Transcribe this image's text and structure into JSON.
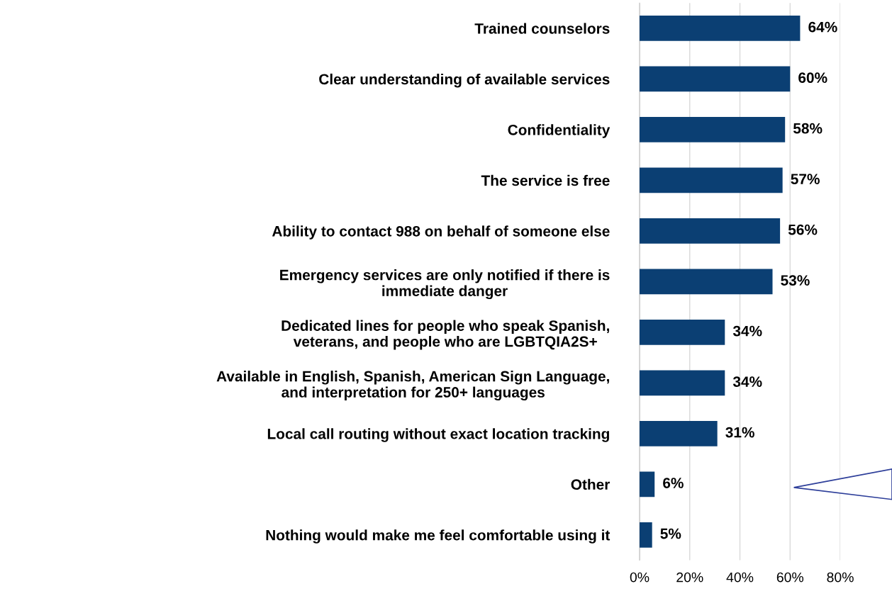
{
  "chart_data": {
    "type": "bar",
    "orientation": "horizontal",
    "categories": [
      "Trained counselors",
      "Clear understanding of available services",
      "Confidentiality",
      "The service is free",
      "Ability to contact 988 on behalf of someone else",
      "Emergency services are only notified if there is\nimmediate danger",
      "Dedicated lines for people who speak Spanish,\nveterans, and people who are LGBTQIA2S+",
      "Available in English, Spanish, American Sign Language,\nand interpretation for 250+ languages",
      "Local call routing without exact location tracking",
      "Other",
      "Nothing would make me feel comfortable using it"
    ],
    "values": [
      64,
      60,
      58,
      57,
      56,
      53,
      34,
      34,
      31,
      6,
      5
    ],
    "value_labels": [
      "64%",
      "60%",
      "58%",
      "57%",
      "56%",
      "53%",
      "34%",
      "34%",
      "31%",
      "6%",
      "5%"
    ],
    "color": "#0b3f73",
    "xlim": [
      0,
      80
    ],
    "xticks": [
      {
        "value": 0,
        "label": "0%"
      },
      {
        "value": 20,
        "label": "20%"
      },
      {
        "value": 40,
        "label": "40%"
      },
      {
        "value": 60,
        "label": "60%"
      },
      {
        "value": 80,
        "label": "80%"
      }
    ],
    "grid": "x"
  }
}
